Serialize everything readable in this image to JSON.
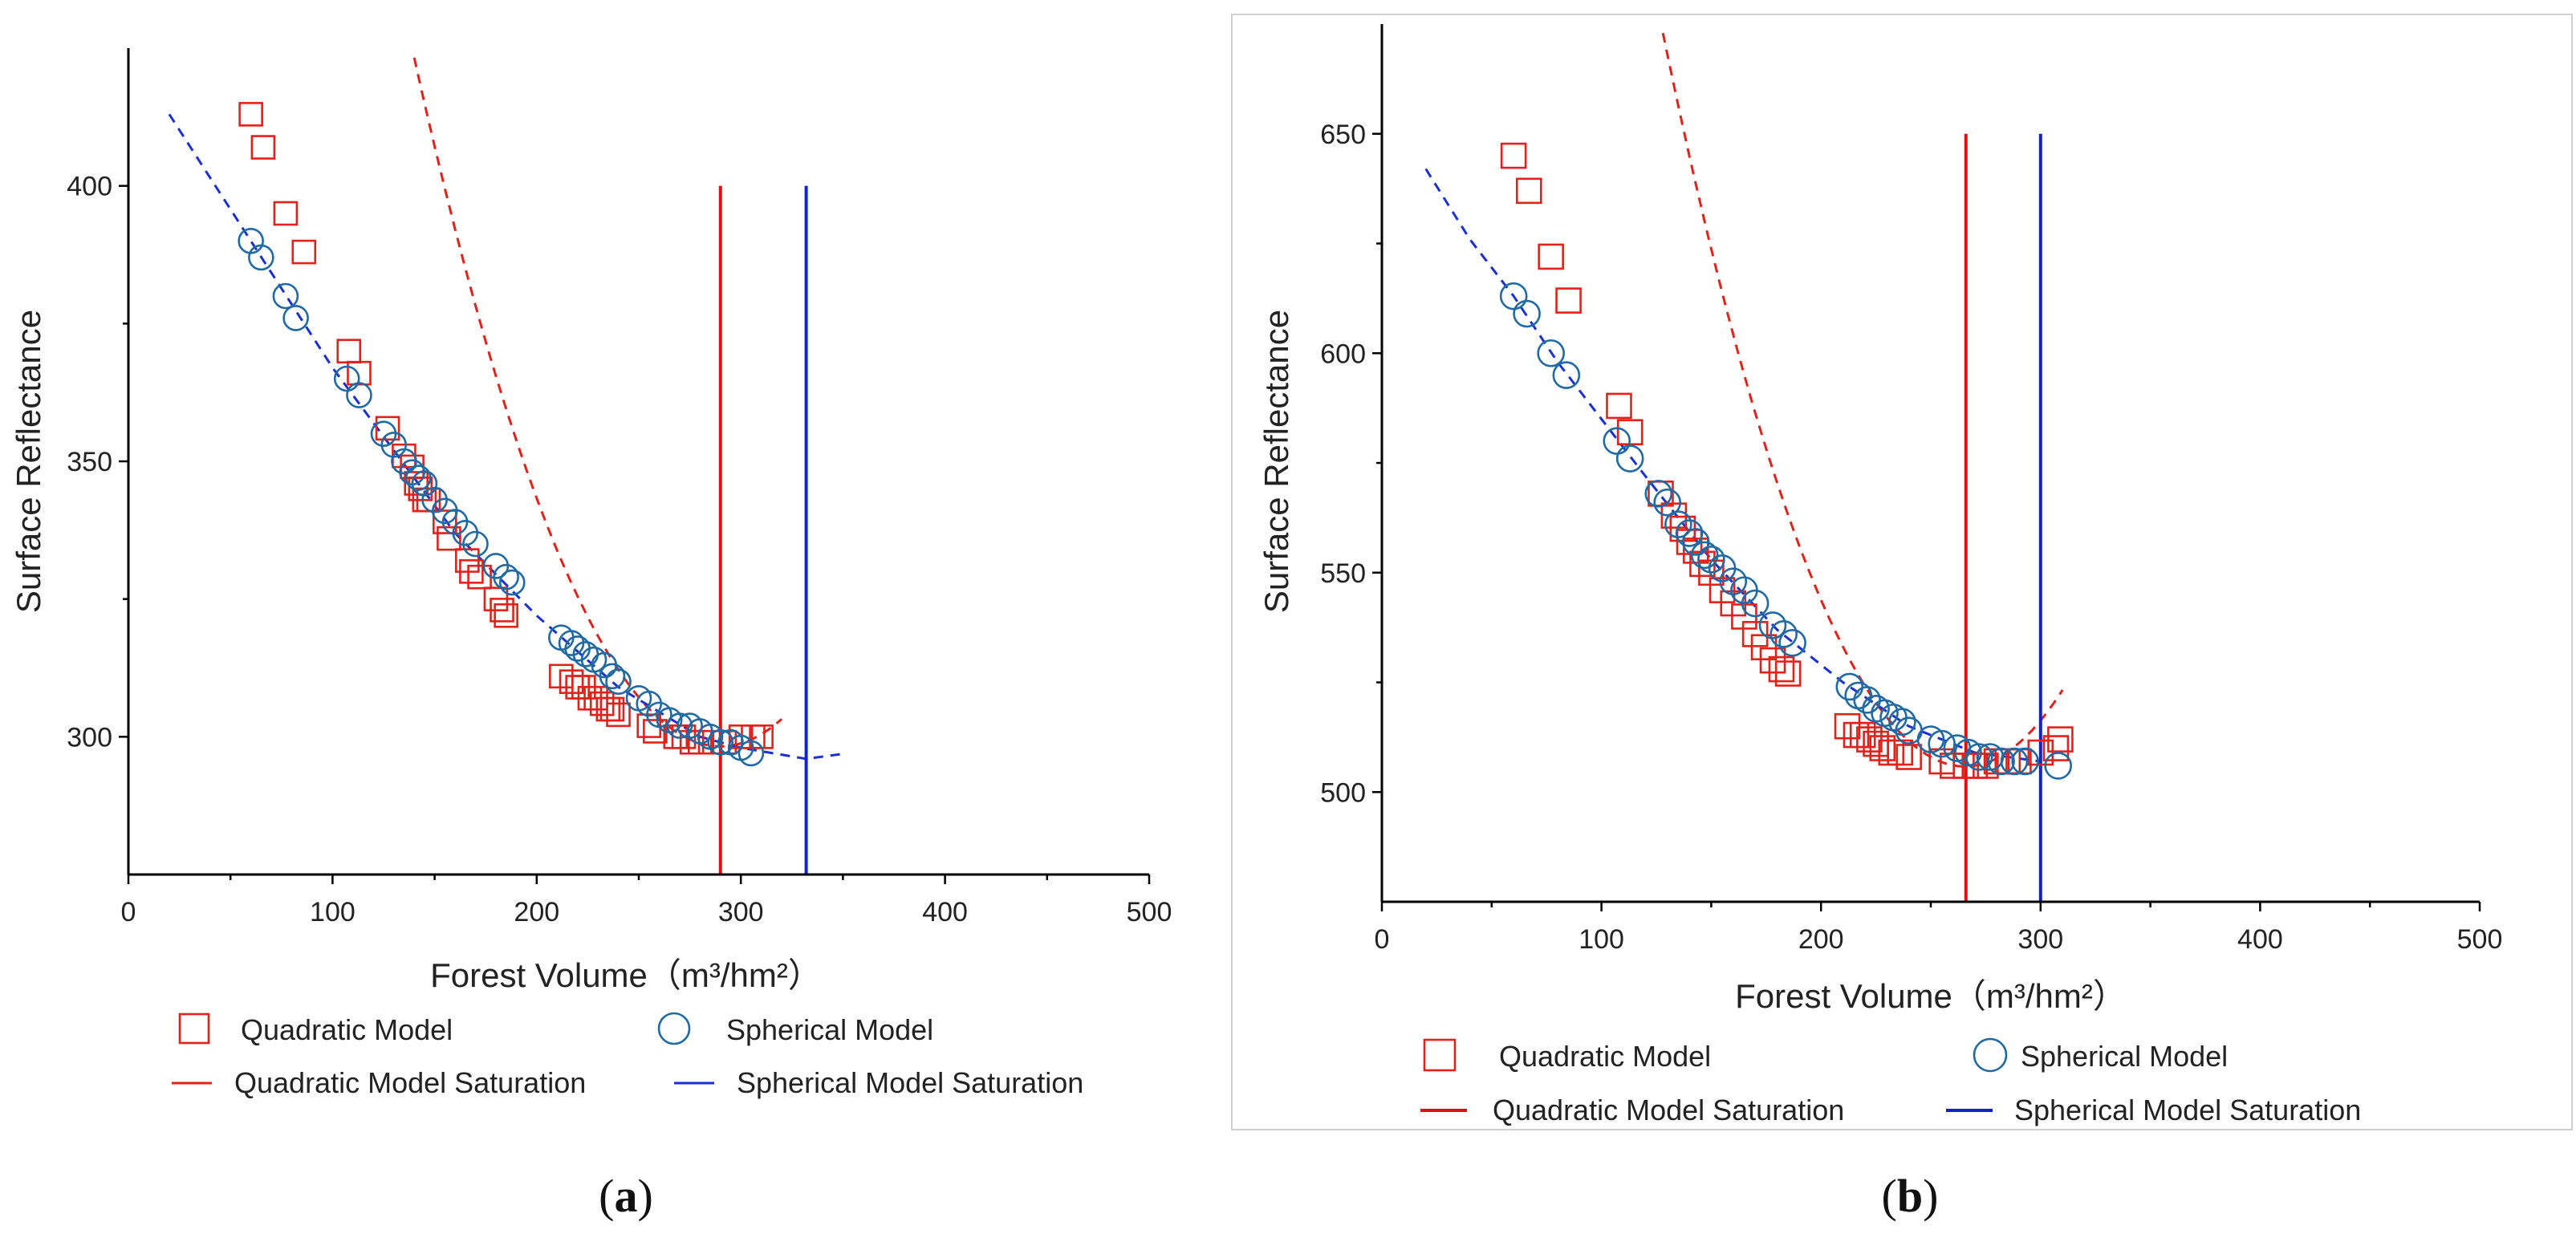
{
  "chart_data": [
    {
      "type": "scatter",
      "panel_label": "a",
      "xlabel": "Forest Volume",
      "xlabel_unit": "（m³/hm²）",
      "ylabel": "Surface Reflectance",
      "xlim": [
        0,
        500
      ],
      "ylim": [
        275,
        425
      ],
      "x_ticks": [
        0,
        100,
        200,
        300,
        400,
        500
      ],
      "y_ticks": [
        300,
        350,
        400
      ],
      "legend": {
        "quadratic": "Quadratic Model",
        "spherical": "Spherical Model",
        "quadratic_saturation": "Quadratic Model Saturation",
        "spherical_saturation": "Spherical Model Saturation"
      },
      "saturation": {
        "quadratic_x": 290,
        "spherical_x": 332,
        "y_range": [
          275,
          400
        ]
      },
      "quadratic_fit": {
        "x_range": [
          50,
          320
        ],
        "coeffs": [
          0.00555,
          -3.22,
          765.3
        ]
      },
      "spherical_fit": {
        "x_range": [
          20,
          352
        ],
        "knots": [
          [
            20,
            413
          ],
          [
            60,
            390
          ],
          [
            100,
            367
          ],
          [
            130,
            352
          ],
          [
            160,
            337
          ],
          [
            200,
            322
          ],
          [
            240,
            309
          ],
          [
            280,
            300
          ],
          [
            300,
            298
          ],
          [
            332,
            296
          ],
          [
            352,
            297
          ]
        ]
      },
      "series": [
        {
          "name": "Quadratic Model",
          "marker": "square",
          "points": [
            [
              60,
              413
            ],
            [
              66,
              407
            ],
            [
              77,
              395
            ],
            [
              86,
              388
            ],
            [
              108,
              370
            ],
            [
              113,
              366
            ],
            [
              127,
              356
            ],
            [
              135,
              351
            ],
            [
              139,
              349
            ],
            [
              141,
              346
            ],
            [
              143,
              345
            ],
            [
              145,
              343
            ],
            [
              147,
              343
            ],
            [
              155,
              339
            ],
            [
              157,
              336
            ],
            [
              166,
              332
            ],
            [
              168,
              330
            ],
            [
              172,
              329
            ],
            [
              180,
              325
            ],
            [
              183,
              323
            ],
            [
              185,
              322
            ],
            [
              212,
              311
            ],
            [
              217,
              310
            ],
            [
              220,
              309
            ],
            [
              223,
              309
            ],
            [
              226,
              307
            ],
            [
              229,
              307
            ],
            [
              232,
              306
            ],
            [
              235,
              305
            ],
            [
              237,
              305
            ],
            [
              240,
              304
            ],
            [
              255,
              302
            ],
            [
              258,
              301
            ],
            [
              268,
              300
            ],
            [
              272,
              300
            ],
            [
              276,
              299
            ],
            [
              280,
              299
            ],
            [
              285,
              299
            ],
            [
              292,
              299
            ],
            [
              300,
              300
            ],
            [
              306,
              300
            ],
            [
              310,
              300
            ]
          ]
        },
        {
          "name": "Spherical Model",
          "marker": "circle",
          "points": [
            [
              60,
              390
            ],
            [
              65,
              387
            ],
            [
              77,
              380
            ],
            [
              82,
              376
            ],
            [
              107,
              365
            ],
            [
              113,
              362
            ],
            [
              125,
              355
            ],
            [
              130,
              353
            ],
            [
              135,
              350
            ],
            [
              139,
              348
            ],
            [
              142,
              347
            ],
            [
              145,
              346
            ],
            [
              150,
              343
            ],
            [
              155,
              341
            ],
            [
              160,
              339
            ],
            [
              165,
              337
            ],
            [
              170,
              335
            ],
            [
              180,
              331
            ],
            [
              185,
              329
            ],
            [
              188,
              328
            ],
            [
              212,
              318
            ],
            [
              217,
              317
            ],
            [
              220,
              316
            ],
            [
              224,
              315
            ],
            [
              228,
              314
            ],
            [
              233,
              313
            ],
            [
              237,
              311
            ],
            [
              240,
              310
            ],
            [
              250,
              307
            ],
            [
              255,
              306
            ],
            [
              260,
              304
            ],
            [
              265,
              303
            ],
            [
              270,
              302
            ],
            [
              275,
              302
            ],
            [
              280,
              301
            ],
            [
              285,
              300
            ],
            [
              290,
              299
            ],
            [
              295,
              299
            ],
            [
              300,
              298
            ],
            [
              305,
              297
            ]
          ]
        }
      ]
    },
    {
      "type": "scatter",
      "panel_label": "b",
      "xlabel": "Forest Volume",
      "xlabel_unit": "（m³/hm²）",
      "ylabel": "Surface Reflectance",
      "xlim": [
        0,
        500
      ],
      "ylim": [
        475,
        675
      ],
      "x_ticks": [
        0,
        100,
        200,
        300,
        400,
        500
      ],
      "y_ticks": [
        500,
        550,
        600,
        650
      ],
      "legend": {
        "quadratic": "Quadratic Model",
        "spherical": "Spherical Model",
        "quadratic_saturation": "Quadratic Model Saturation",
        "spherical_saturation": "Spherical Model Saturation"
      },
      "saturation": {
        "quadratic_x": 266,
        "spherical_x": 300,
        "y_range": [
          475,
          650
        ]
      },
      "quadratic_fit": {
        "x_range": [
          40,
          310
        ],
        "coeffs": [
          0.00883,
          -4.69,
          1128.6
        ]
      },
      "spherical_fit": {
        "x_range": [
          20,
          300
        ],
        "knots": [
          [
            20,
            642
          ],
          [
            40,
            626
          ],
          [
            60,
            613
          ],
          [
            80,
            598
          ],
          [
            100,
            585
          ],
          [
            120,
            572
          ],
          [
            150,
            553
          ],
          [
            180,
            537
          ],
          [
            210,
            525
          ],
          [
            240,
            515
          ],
          [
            270,
            509
          ],
          [
            300,
            507
          ]
        ]
      },
      "series": [
        {
          "name": "Quadratic Model",
          "marker": "square",
          "points": [
            [
              60,
              645
            ],
            [
              67,
              637
            ],
            [
              77,
              622
            ],
            [
              85,
              612
            ],
            [
              108,
              588
            ],
            [
              113,
              582
            ],
            [
              127,
              568
            ],
            [
              133,
              563
            ],
            [
              137,
              560
            ],
            [
              140,
              557
            ],
            [
              143,
              555
            ],
            [
              146,
              552
            ],
            [
              150,
              550
            ],
            [
              155,
              546
            ],
            [
              160,
              543
            ],
            [
              165,
              540
            ],
            [
              170,
              536
            ],
            [
              174,
              533
            ],
            [
              178,
              530
            ],
            [
              182,
              528
            ],
            [
              185,
              527
            ],
            [
              212,
              515
            ],
            [
              216,
              513
            ],
            [
              219,
              513
            ],
            [
              222,
              512
            ],
            [
              225,
              511
            ],
            [
              228,
              510
            ],
            [
              232,
              509
            ],
            [
              236,
              509
            ],
            [
              240,
              508
            ],
            [
              255,
              507
            ],
            [
              260,
              506
            ],
            [
              266,
              506
            ],
            [
              270,
              506
            ],
            [
              275,
              506
            ],
            [
              280,
              507
            ],
            [
              285,
              507
            ],
            [
              290,
              507
            ],
            [
              300,
              509
            ],
            [
              307,
              510
            ],
            [
              309,
              512
            ]
          ]
        },
        {
          "name": "Spherical Model",
          "marker": "circle",
          "points": [
            [
              60,
              613
            ],
            [
              66,
              609
            ],
            [
              77,
              600
            ],
            [
              84,
              595
            ],
            [
              107,
              580
            ],
            [
              113,
              576
            ],
            [
              126,
              568
            ],
            [
              130,
              566
            ],
            [
              135,
              561
            ],
            [
              140,
              559
            ],
            [
              143,
              557
            ],
            [
              147,
              554
            ],
            [
              150,
              553
            ],
            [
              155,
              551
            ],
            [
              160,
              548
            ],
            [
              165,
              546
            ],
            [
              170,
              543
            ],
            [
              178,
              538
            ],
            [
              183,
              536
            ],
            [
              187,
              534
            ],
            [
              213,
              524
            ],
            [
              217,
              522
            ],
            [
              221,
              521
            ],
            [
              225,
              519
            ],
            [
              229,
              518
            ],
            [
              233,
              517
            ],
            [
              237,
              516
            ],
            [
              240,
              514
            ],
            [
              250,
              512
            ],
            [
              255,
              511
            ],
            [
              262,
              510
            ],
            [
              267,
              509
            ],
            [
              272,
              508
            ],
            [
              277,
              508
            ],
            [
              282,
              507
            ],
            [
              288,
              507
            ],
            [
              293,
              507
            ],
            [
              308,
              506
            ]
          ]
        }
      ]
    }
  ],
  "captions": [
    "(a)",
    "(b)"
  ]
}
